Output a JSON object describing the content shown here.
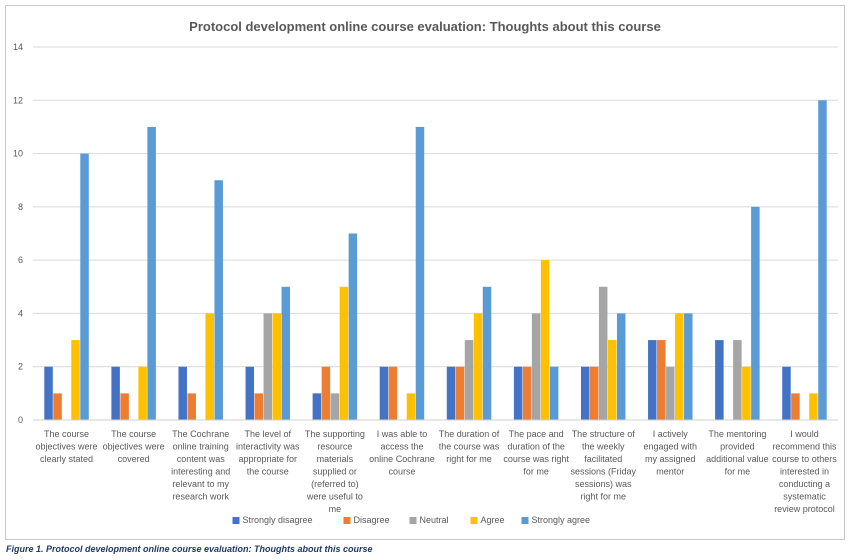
{
  "chart_data": {
    "type": "bar",
    "title": "Protocol development online course evaluation: Thoughts about this course",
    "xlabel": "",
    "ylabel": "",
    "ylim": [
      0,
      14
    ],
    "yticks": [
      "0",
      "2",
      "4",
      "6",
      "8",
      "10",
      "12",
      "14"
    ],
    "grid": true,
    "legend_position": "bottom",
    "categories": [
      [
        "The course",
        "objectives were",
        "clearly stated"
      ],
      [
        "The course",
        "objectives were",
        "covered"
      ],
      [
        "The Cochrane",
        "online training",
        "content was",
        "interesting and",
        "relevant to my",
        "research work"
      ],
      [
        "The level of",
        "interactivity was",
        "appropriate for",
        "the course"
      ],
      [
        "The supporting",
        "resource",
        "materials",
        "supplied or",
        "(referred to)",
        "were useful to",
        "me"
      ],
      [
        "I was able to",
        "access the",
        "online Cochrane",
        "course"
      ],
      [
        "The duration of",
        "the course was",
        "right for me"
      ],
      [
        "The pace and",
        "duration of the",
        "course was right",
        "for me"
      ],
      [
        "The structure of",
        "the weekly",
        "facilitated",
        "sessions (Friday",
        "sessions) was",
        "right for me"
      ],
      [
        "I actively",
        "engaged with",
        "my assigned",
        "mentor"
      ],
      [
        "The mentoring",
        "provided",
        "additional value",
        "for me"
      ],
      [
        "I would",
        "recommend this",
        "course to others",
        "interested in",
        "conducting a",
        "systematic",
        "review protocol"
      ]
    ],
    "series": [
      {
        "name": "Strongly disagree",
        "color": "#4472c4",
        "values": [
          2,
          2,
          2,
          2,
          1,
          2,
          2,
          2,
          2,
          3,
          3,
          2
        ]
      },
      {
        "name": "Disagree",
        "color": "#ed7d31",
        "values": [
          1,
          1,
          1,
          1,
          2,
          2,
          2,
          2,
          2,
          3,
          0,
          1
        ]
      },
      {
        "name": "Neutral",
        "color": "#a5a5a5",
        "values": [
          0,
          0,
          0,
          4,
          1,
          0,
          3,
          4,
          5,
          2,
          3,
          0
        ]
      },
      {
        "name": "Agree",
        "color": "#ffc000",
        "values": [
          3,
          2,
          4,
          4,
          5,
          1,
          4,
          6,
          3,
          4,
          2,
          1
        ]
      },
      {
        "name": "Strongly agree",
        "color": "#5b9bd5",
        "values": [
          10,
          11,
          9,
          5,
          7,
          11,
          5,
          2,
          4,
          4,
          8,
          12
        ]
      }
    ]
  },
  "caption": "Figure 1. Protocol development online course evaluation: Thoughts about this course"
}
